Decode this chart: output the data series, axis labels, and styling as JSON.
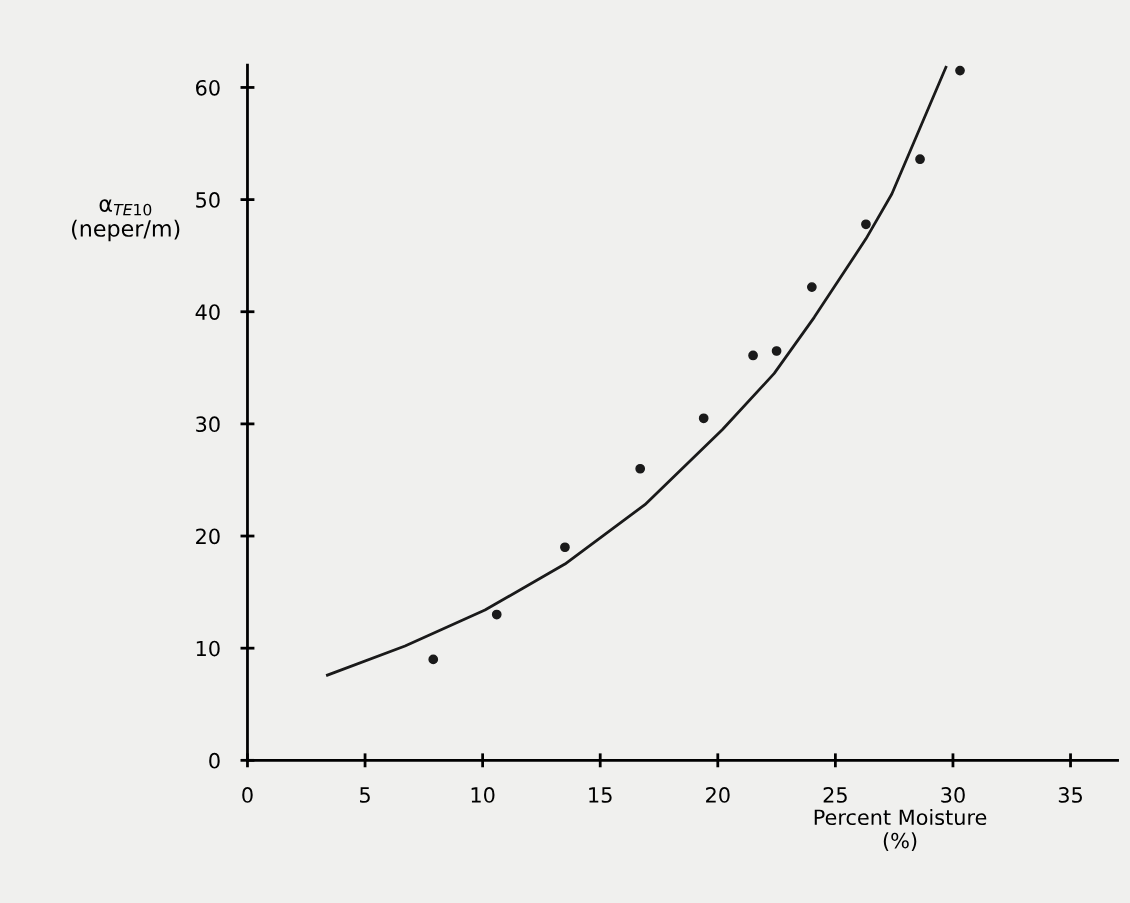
{
  "chart_data": {
    "type": "scatter",
    "xlabel": "Percent Moisture\n(%)",
    "ylabel": "α$_{TE10}$\n(neper/m)",
    "xlim": [
      0,
      37
    ],
    "ylim": [
      0,
      62
    ],
    "xticks": [
      0,
      5,
      10,
      15,
      20,
      25,
      30,
      35
    ],
    "yticks": [
      0,
      10,
      20,
      30,
      40,
      50,
      60
    ],
    "marker": "circle",
    "series": [
      {
        "color": "#1a1a1a",
        "x": [
          7.9,
          10.6,
          13.5,
          16.7,
          19.4,
          21.5,
          22.5,
          24.0,
          26.3,
          28.6,
          30.3
        ],
        "values": [
          9.0,
          13.0,
          19.0,
          26.0,
          30.5,
          36.1,
          36.5,
          42.2,
          47.8,
          53.6,
          61.5
        ]
      },
      {
        "type": "line",
        "color": "#1a1a1a",
        "marker": "none",
        "line_style": "solid",
        "x": [
          3.4,
          6.7,
          10.1,
          13.5,
          16.9,
          20.2,
          22.4,
          24.1,
          26.3,
          27.4,
          29.7
        ],
        "values": [
          7.6,
          10.2,
          13.4,
          17.5,
          22.8,
          29.5,
          34.5,
          39.5,
          46.5,
          50.5,
          61.8
        ]
      }
    ]
  }
}
